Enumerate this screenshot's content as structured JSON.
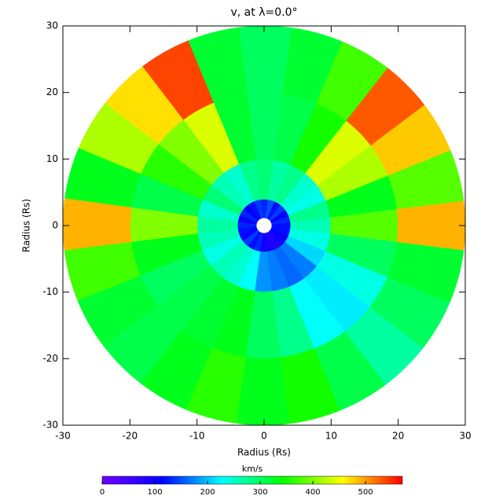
{
  "chart_data": {
    "type": "polar-heatmap",
    "title": "v, at λ=0.0°",
    "x_label": "Radius (Rs)",
    "y_label": "Radius (Rs)",
    "xlim": [
      -30,
      30
    ],
    "ylim": [
      -30,
      30
    ],
    "xticks": [
      -30,
      -20,
      -10,
      0,
      10,
      20,
      30
    ],
    "yticks": [
      -30,
      -20,
      -10,
      0,
      10,
      20,
      30
    ],
    "r_edges": [
      1.2,
      4,
      10,
      20,
      30
    ],
    "theta_edges": [
      -7.5,
      7.5,
      22.5,
      37.5,
      52.5,
      67.5,
      82.5,
      97.5,
      112.5,
      127.5,
      142.5,
      157.5,
      172.5,
      187.5,
      202.5,
      217.5,
      232.5,
      247.5,
      262.5,
      277.5,
      292.5,
      307.5,
      322.5,
      337.5,
      352.5
    ],
    "values": [
      [
        120,
        130,
        110,
        140,
        120,
        150,
        130,
        140,
        120,
        110,
        130,
        100,
        130,
        120,
        110,
        140,
        120,
        130,
        100,
        90,
        80,
        90,
        110,
        120
      ],
      [
        260,
        280,
        240,
        250,
        280,
        270,
        290,
        280,
        250,
        260,
        290,
        250,
        270,
        260,
        240,
        260,
        250,
        230,
        180,
        170,
        160,
        170,
        210,
        240
      ],
      [
        380,
        330,
        420,
        440,
        350,
        310,
        300,
        320,
        440,
        400,
        360,
        310,
        400,
        330,
        300,
        310,
        320,
        330,
        300,
        280,
        230,
        220,
        240,
        300
      ],
      [
        490,
        380,
        480,
        530,
        370,
        320,
        300,
        320,
        540,
        470,
        420,
        330,
        490,
        370,
        320,
        310,
        330,
        360,
        330,
        350,
        310,
        270,
        300,
        320
      ]
    ],
    "colorbar_label": "km/s",
    "clim": [
      0,
      570
    ],
    "cticks": [
      0,
      100,
      200,
      300,
      400,
      500
    ],
    "colormap": [
      "#7000ff",
      "#0000ff",
      "#00ffff",
      "#00ff00",
      "#ffff00",
      "#ff0000"
    ]
  }
}
